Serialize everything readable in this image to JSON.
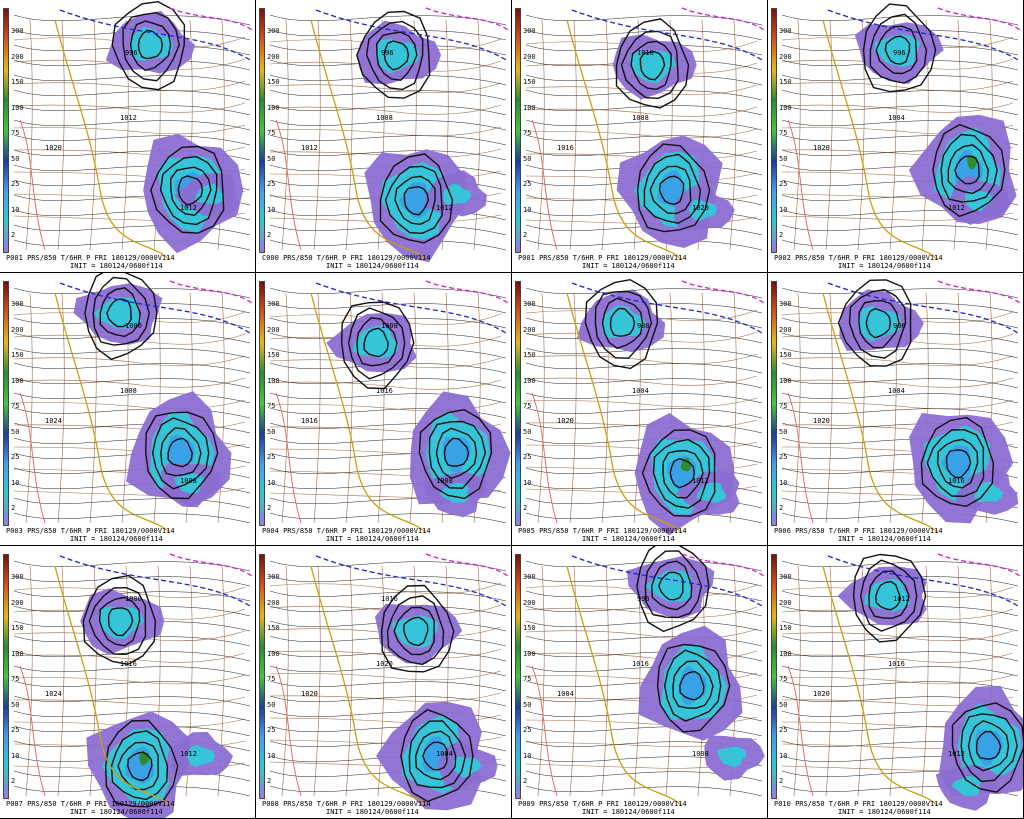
{
  "colorbar": {
    "ticks": [
      "300",
      "200",
      "150",
      "100",
      "75",
      "50",
      "25",
      "10",
      "2"
    ],
    "colors": [
      "#7a1010",
      "#d2541c",
      "#e6b91e",
      "#2e8b2e",
      "#43c643",
      "#1e3c96",
      "#46a0e6",
      "#36c8d2",
      "#9a7ad8"
    ]
  },
  "colors": {
    "precip_light": "#8c6ed2",
    "precip_mid": "#32c8d8",
    "precip_heavy": "#3aa0e8",
    "precip_extreme": "#2e8b2e",
    "mslp_contour": "#111111",
    "thickness_contour": "#ffffff",
    "temp_850_zero": "#c8a010",
    "temp_850_cold": "#1e28c8",
    "temp_850_colder": "#d21ed2",
    "warm_contour": "#e06060",
    "boundaries": "#8b4513"
  },
  "panels": [
    {
      "line1": "P001 PRS/850 T/6HR P FRI 180129/0000V114",
      "line2": "INIT = 180124/0600f114",
      "labels": [
        "996",
        "1012",
        "1020",
        "1012"
      ]
    },
    {
      "line1": "C000 PRS/850 T/6HR P FRI 180129/0000V114",
      "line2": "INIT = 180124/0600f114",
      "labels": [
        "996",
        "1008",
        "1012",
        "1012"
      ]
    },
    {
      "line1": "P001 PRS/850 T/6HR P FRI 180129/0000V114",
      "line2": "INIT = 180124/0600f114",
      "labels": [
        "1016",
        "1008",
        "1016",
        "1020"
      ]
    },
    {
      "line1": "P002 PRS/850 T/6HR P FRI 180129/0000V114",
      "line2": "INIT = 180124/0600f114",
      "labels": [
        "996",
        "1004",
        "1020",
        "1012"
      ]
    },
    {
      "line1": "P003 PRS/850 T/6HR P FRI 180129/0000V114",
      "line2": "INIT = 180124/0600f114",
      "labels": [
        "1000",
        "1008",
        "1024",
        "1008"
      ]
    },
    {
      "line1": "P004 PRS/850 T/6HR P FRI 180129/0000V114",
      "line2": "INIT = 180124/0600f114",
      "labels": [
        "1008",
        "1016",
        "1016",
        "1008"
      ]
    },
    {
      "line1": "P005 PRS/850 T/6HR P FRI 180129/0000V114",
      "line2": "INIT = 180124/0600f114",
      "labels": [
        "988",
        "1004",
        "1020",
        "1012"
      ]
    },
    {
      "line1": "P006 PRS/850 T/6HR P FRI 180129/0000V114",
      "line2": "INIT = 180124/0600f114",
      "labels": [
        "996",
        "1004",
        "1020",
        "1016"
      ]
    },
    {
      "line1": "P007 PRS/850 T/6HR P FRI 180129/0000V114",
      "line2": "INIT = 180124/0600f114",
      "labels": [
        "1000",
        "1016",
        "1024",
        "1012"
      ]
    },
    {
      "line1": "P008 PRS/850 T/6HR P FRI 180129/0000V114",
      "line2": "INIT = 180124/0600f114",
      "labels": [
        "1016",
        "1020",
        "1020",
        "1004"
      ]
    },
    {
      "line1": "P009 PRS/850 T/6HR P FRI 180129/0000V114",
      "line2": "INIT = 180124/0600f114",
      "labels": [
        "996",
        "1016",
        "1004",
        "1008"
      ]
    },
    {
      "line1": "P010 PRS/850 T/6HR P FRI 180129/0000V114",
      "line2": "INIT = 180124/0600f114",
      "labels": [
        "1012",
        "1016",
        "1020",
        "1012"
      ]
    }
  ]
}
